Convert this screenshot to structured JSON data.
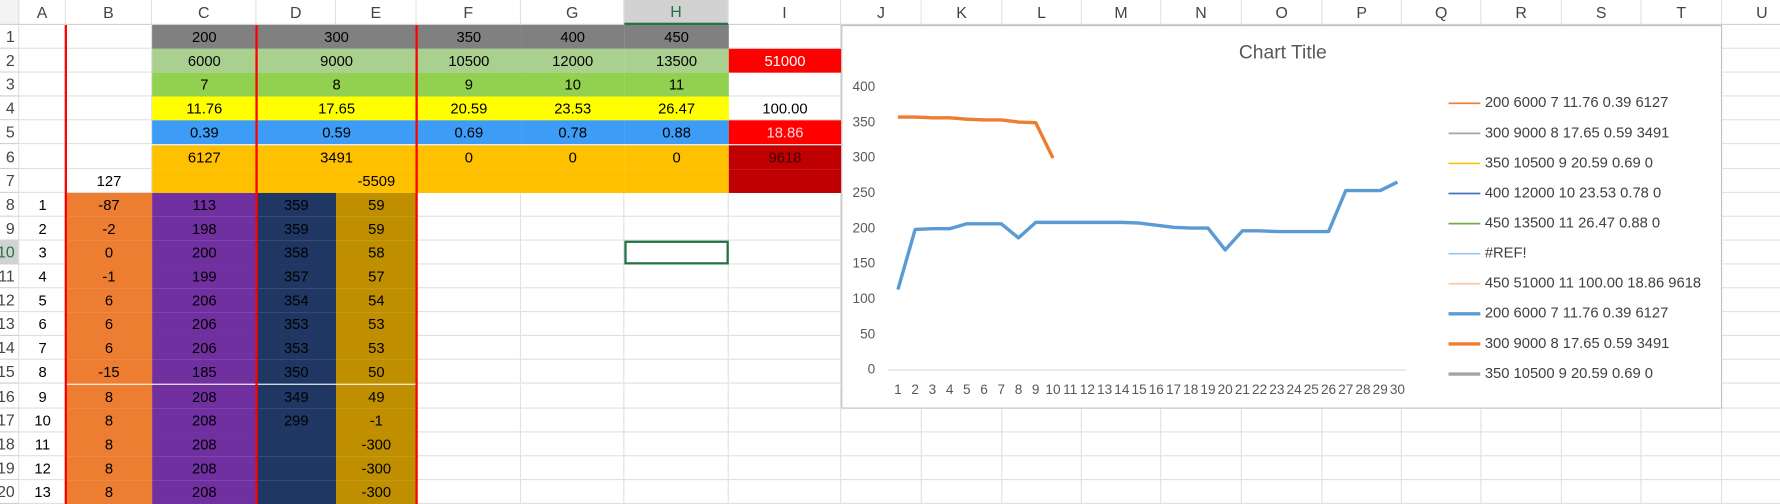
{
  "sheet": {
    "columns": [
      "A",
      "B",
      "C",
      "D",
      "E",
      "F",
      "G",
      "H",
      "I",
      "J",
      "K",
      "L",
      "M",
      "N",
      "O",
      "P",
      "Q",
      "R",
      "S",
      "T",
      "U"
    ],
    "rows": [
      1,
      2,
      3,
      4,
      5,
      6,
      7,
      8,
      9,
      10,
      11,
      12,
      13,
      14,
      15,
      16,
      17,
      18,
      19,
      20
    ],
    "cells": [
      [
        null,
        null,
        200,
        300,
        null,
        350,
        400,
        450,
        null
      ],
      [
        null,
        null,
        6000,
        9000,
        null,
        10500,
        12000,
        13500,
        51000
      ],
      [
        null,
        null,
        7,
        8,
        null,
        9,
        10,
        11,
        null
      ],
      [
        null,
        null,
        11.76,
        17.65,
        null,
        20.59,
        23.53,
        26.47,
        "100.00"
      ],
      [
        null,
        null,
        0.39,
        0.59,
        null,
        0.69,
        0.78,
        0.88,
        18.86
      ],
      [
        null,
        null,
        6127,
        3491,
        null,
        0,
        0,
        0,
        9618
      ],
      [
        null,
        127,
        null,
        null,
        -5509,
        null,
        null,
        null,
        null
      ],
      [
        1,
        -87,
        113,
        359,
        59,
        null,
        null,
        null,
        null
      ],
      [
        2,
        -2,
        198,
        359,
        59,
        null,
        null,
        null,
        null
      ],
      [
        3,
        0,
        200,
        358,
        58,
        null,
        null,
        null,
        null
      ],
      [
        4,
        -1,
        199,
        357,
        57,
        null,
        null,
        null,
        null
      ],
      [
        5,
        6,
        206,
        354,
        54,
        null,
        null,
        null,
        null
      ],
      [
        6,
        6,
        206,
        353,
        53,
        null,
        null,
        null,
        null
      ],
      [
        7,
        6,
        206,
        353,
        53,
        null,
        null,
        null,
        null
      ],
      [
        8,
        -15,
        185,
        350,
        50,
        null,
        null,
        null,
        null
      ],
      [
        9,
        8,
        208,
        349,
        49,
        null,
        null,
        null,
        null
      ],
      [
        10,
        8,
        208,
        299,
        -1,
        null,
        null,
        null,
        null
      ],
      [
        11,
        8,
        208,
        null,
        -300,
        null,
        null,
        null,
        null
      ],
      [
        12,
        8,
        208,
        null,
        -300,
        null,
        null,
        null,
        null
      ],
      [
        13,
        8,
        208,
        null,
        -300,
        null,
        null,
        null,
        null
      ]
    ]
  },
  "chart_data": {
    "type": "line",
    "title": "Chart Title",
    "legend": "right",
    "grid": false,
    "categories": [
      1,
      2,
      3,
      4,
      5,
      6,
      7,
      8,
      9,
      10,
      11,
      12,
      13,
      14,
      15,
      16,
      17,
      18,
      19,
      20,
      21,
      22,
      23,
      24,
      25,
      26,
      27,
      28,
      29,
      30
    ],
    "ylim": [
      0,
      400
    ],
    "yticks": [
      0,
      50,
      100,
      150,
      200,
      250,
      300,
      350,
      400
    ],
    "series": [
      {
        "name": "200 6000 7 11.76 0.39 6127",
        "color": "#ed7d31",
        "width": 1.5,
        "values": [
          null,
          null,
          null,
          null,
          null,
          null,
          null,
          null,
          null,
          null,
          null,
          null,
          null,
          null,
          null,
          null,
          null,
          null,
          null,
          null,
          null,
          null,
          null,
          null,
          null,
          null,
          null,
          null,
          null,
          null
        ]
      },
      {
        "name": "300 9000 8 17.65 0.59 3491",
        "color": "#a5a5a5",
        "width": 1.5,
        "values": [
          null,
          null,
          null,
          null,
          null,
          null,
          null,
          null,
          null,
          null,
          null,
          null,
          null,
          null,
          null,
          null,
          null,
          null,
          null,
          null,
          null,
          null,
          null,
          null,
          null,
          null,
          null,
          null,
          null,
          null
        ]
      },
      {
        "name": "350 10500 9 20.59 0.69 0",
        "color": "#ffc000",
        "width": 1.5,
        "values": [
          null,
          null,
          null,
          null,
          null,
          null,
          null,
          null,
          null,
          null,
          null,
          null,
          null,
          null,
          null,
          null,
          null,
          null,
          null,
          null,
          null,
          null,
          null,
          null,
          null,
          null,
          null,
          null,
          null,
          null
        ]
      },
      {
        "name": "400 12000 10 23.53 0.78 0",
        "color": "#4472c4",
        "width": 1.5,
        "values": [
          null,
          null,
          null,
          null,
          null,
          null,
          null,
          null,
          null,
          null,
          null,
          null,
          null,
          null,
          null,
          null,
          null,
          null,
          null,
          null,
          null,
          null,
          null,
          null,
          null,
          null,
          null,
          null,
          null,
          null
        ]
      },
      {
        "name": "450 13500 11 26.47 0.88 0",
        "color": "#70ad47",
        "width": 1.5,
        "values": [
          null,
          null,
          null,
          null,
          null,
          null,
          null,
          null,
          null,
          null,
          null,
          null,
          null,
          null,
          null,
          null,
          null,
          null,
          null,
          null,
          null,
          null,
          null,
          null,
          null,
          null,
          null,
          null,
          null,
          null
        ]
      },
      {
        "name": "#REF!",
        "color": "#9dc3e6",
        "width": 1.5,
        "values": [
          null,
          null,
          null,
          null,
          null,
          null,
          null,
          null,
          null,
          null,
          null,
          null,
          null,
          null,
          null,
          null,
          null,
          null,
          null,
          null,
          null,
          null,
          null,
          null,
          null,
          null,
          null,
          null,
          null,
          null
        ]
      },
      {
        "name": "450 51000 11 100.00 18.86 9618",
        "color": "#f8cbad",
        "width": 1.5,
        "values": [
          null,
          null,
          null,
          null,
          null,
          null,
          null,
          null,
          null,
          null,
          null,
          null,
          null,
          null,
          null,
          null,
          null,
          null,
          null,
          null,
          null,
          null,
          null,
          null,
          null,
          null,
          null,
          null,
          null,
          null
        ]
      },
      {
        "name": "200 6000 7 11.76 0.39 6127",
        "color": "#5b9bd5",
        "width": 3,
        "values": [
          114,
          199,
          200,
          200,
          207,
          207,
          207,
          187,
          209,
          209,
          209,
          209,
          209,
          209,
          208,
          205,
          202,
          201,
          201,
          170,
          197,
          197,
          196,
          196,
          196,
          196,
          254,
          254,
          254,
          266
        ]
      },
      {
        "name": "300 9000 8 17.65 0.59 3491",
        "color": "#ed7d31",
        "width": 3,
        "values": [
          358,
          358,
          357,
          357,
          355,
          354,
          354,
          351,
          350,
          300,
          null,
          null,
          null,
          null,
          null,
          null,
          null,
          null,
          null,
          null,
          null,
          null,
          null,
          null,
          null,
          null,
          null,
          null,
          null,
          null
        ]
      },
      {
        "name": "350 10500 9 20.59 0.69 0",
        "color": "#a5a5a5",
        "width": 3,
        "values": [
          null,
          null,
          null,
          null,
          null,
          null,
          null,
          null,
          null,
          null,
          null,
          null,
          null,
          null,
          null,
          null,
          null,
          null,
          null,
          null,
          null,
          null,
          null,
          null,
          null,
          null,
          null,
          null,
          null,
          null
        ]
      }
    ]
  }
}
